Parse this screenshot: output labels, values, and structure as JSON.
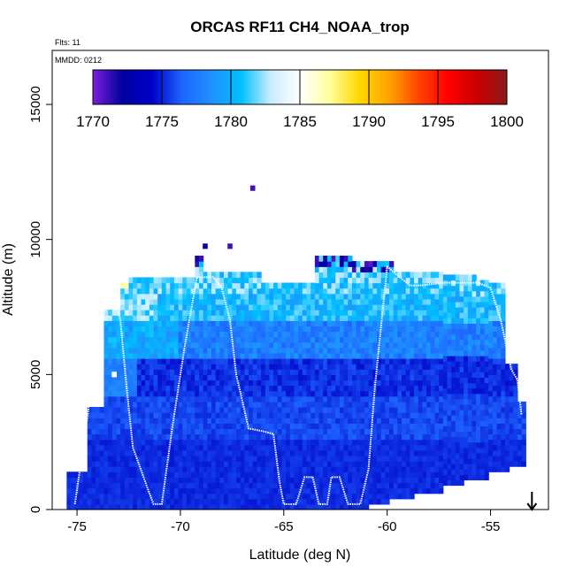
{
  "chart_data": {
    "type": "heatmap",
    "title": "ORCAS RF11 CH4_NOAA_trop",
    "flights_label": "Flts: 11",
    "date_label": "MMDD: 0212",
    "xlabel": "Latitude (deg N)",
    "ylabel": "Altitude (m)",
    "xlim": [
      -76.2,
      -52.2
    ],
    "ylim": [
      0,
      17000
    ],
    "xticks": [
      -75,
      -70,
      -65,
      -60,
      -55
    ],
    "xtick_labels": [
      "-75",
      "-70",
      "-65",
      "-60",
      "-55"
    ],
    "yticks": [
      0,
      5000,
      10000,
      15000
    ],
    "ytick_labels": [
      "0",
      "5000",
      "10000",
      "15000"
    ],
    "colorbar": {
      "min": 1770,
      "max": 1800,
      "ticks": [
        1770,
        1775,
        1780,
        1785,
        1790,
        1795,
        1800
      ],
      "tick_labels": [
        "1770",
        "1775",
        "1780",
        "1785",
        "1790",
        "1795",
        "1800"
      ],
      "colors": [
        "#7a1fd8",
        "#00009e",
        "#0000c8",
        "#1e64ff",
        "#1e90ff",
        "#00bfff",
        "#c8ecff",
        "#ffffff",
        "#ffff9e",
        "#ffd700",
        "#ffa500",
        "#ff4500",
        "#ff0000",
        "#c80000",
        "#8b1a1a"
      ]
    },
    "profile_columns": [
      {
        "lat": [
          -75.4,
          -74.4
        ],
        "top": 1300
      },
      {
        "lat": [
          -75.2,
          -73.6
        ],
        "top": 3700
      },
      {
        "lat": [
          -74.6,
          -73.6
        ],
        "top": 5200
      },
      {
        "lat": [
          -74.0,
          -72.8
        ],
        "top": 7400
      },
      {
        "lat": [
          -73.4,
          -72.4
        ],
        "top": 8300
      },
      {
        "lat": [
          -72.4,
          -69.2
        ],
        "top": 8500
      },
      {
        "lat": [
          -70.6,
          -68.8
        ],
        "top": 9300
      },
      {
        "lat": [
          -69.2,
          -66.0
        ],
        "top": 8800
      },
      {
        "lat": [
          -66.0,
          -63.4
        ],
        "top": 8400
      },
      {
        "lat": [
          -63.4,
          -61.6
        ],
        "top": 9300
      },
      {
        "lat": [
          -61.6,
          -59.6
        ],
        "top": 9200
      },
      {
        "lat": [
          -59.6,
          -55.6
        ],
        "top": 8700
      },
      {
        "lat": [
          -55.6,
          -54.2
        ],
        "top": 8400
      },
      {
        "lat": [
          -54.2,
          -53.6
        ],
        "top": 5400
      },
      {
        "lat": [
          -53.6,
          -53.2
        ],
        "top": 4000
      }
    ],
    "bottom_steps": [
      {
        "lat": [
          -75.5,
          -75.0
        ],
        "bottom": 0
      },
      {
        "lat": [
          -65.0,
          -61.0
        ],
        "bottom": 0
      },
      {
        "lat": [
          -60.8,
          -59.8
        ],
        "bottom": 200
      },
      {
        "lat": [
          -59.8,
          -58.6
        ],
        "bottom": 400
      },
      {
        "lat": [
          -58.6,
          -57.2
        ],
        "bottom": 600
      },
      {
        "lat": [
          -57.2,
          -56.2
        ],
        "bottom": 900
      },
      {
        "lat": [
          -56.2,
          -55.0
        ],
        "bottom": 1100
      },
      {
        "lat": [
          -55.0,
          -54.0
        ],
        "bottom": 1400
      },
      {
        "lat": [
          -54.0,
          -53.3
        ],
        "bottom": 1600
      }
    ],
    "isolated_points": [
      {
        "lat": -68.8,
        "alt": 9650,
        "value": 1772
      },
      {
        "lat": -67.6,
        "alt": 9650,
        "value": 1771
      },
      {
        "lat": -66.5,
        "alt": 11800,
        "value": 1771
      },
      {
        "lat": -73.2,
        "alt": 4900,
        "value": 1785
      }
    ],
    "flight_track": [
      [
        -75.1,
        200
      ],
      [
        -74.8,
        1800
      ],
      [
        -74.3,
        4500
      ],
      [
        -73.8,
        7000
      ],
      [
        -73.3,
        8200
      ],
      [
        -72.9,
        7000
      ],
      [
        -72.6,
        4500
      ],
      [
        -72.3,
        2300
      ],
      [
        -71.5,
        600
      ],
      [
        -71.3,
        200
      ],
      [
        -70.9,
        200
      ],
      [
        -70.4,
        3000
      ],
      [
        -69.8,
        6000
      ],
      [
        -69.2,
        8600
      ],
      [
        -68.4,
        8600
      ],
      [
        -68.0,
        8200
      ],
      [
        -67.6,
        7000
      ],
      [
        -67.3,
        5000
      ],
      [
        -66.7,
        3000
      ],
      [
        -66.0,
        2900
      ],
      [
        -65.5,
        2800
      ],
      [
        -65.2,
        1000
      ],
      [
        -65.0,
        200
      ],
      [
        -64.4,
        200
      ],
      [
        -64.0,
        1200
      ],
      [
        -63.6,
        1200
      ],
      [
        -63.3,
        200
      ],
      [
        -62.9,
        200
      ],
      [
        -62.7,
        1200
      ],
      [
        -62.3,
        1200
      ],
      [
        -61.9,
        200
      ],
      [
        -61.3,
        200
      ],
      [
        -60.9,
        1500
      ],
      [
        -60.6,
        4500
      ],
      [
        -60.2,
        7500
      ],
      [
        -60.0,
        9000
      ],
      [
        -59.7,
        8800
      ],
      [
        -58.9,
        8300
      ],
      [
        -58.4,
        8300
      ],
      [
        -57.2,
        8400
      ],
      [
        -55.6,
        8400
      ],
      [
        -55.0,
        8200
      ],
      [
        -54.5,
        7000
      ],
      [
        -54.0,
        5200
      ],
      [
        -53.7,
        4800
      ],
      [
        -53.5,
        3500
      ]
    ],
    "marker": {
      "lat": -53.0,
      "alt": 0,
      "symbol": "arrow-down"
    }
  }
}
